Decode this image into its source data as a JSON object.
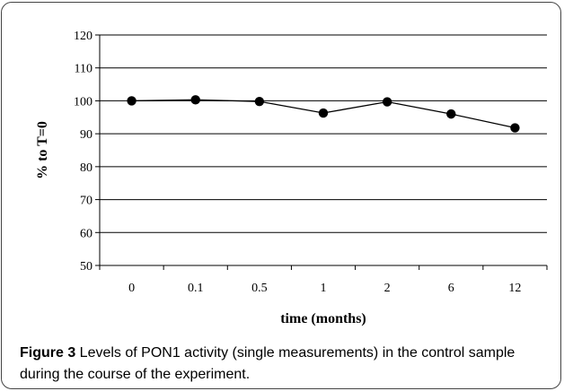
{
  "chart_data": {
    "type": "line",
    "categories": [
      "0",
      "0.1",
      "0.5",
      "1",
      "2",
      "6",
      "12"
    ],
    "series": [
      {
        "values": [
          100,
          100.3,
          99.8,
          96.3,
          99.7,
          96,
          91.8
        ]
      }
    ],
    "xlabel": "time (months)",
    "ylabel": "% to T=0",
    "ylim": [
      50,
      120
    ],
    "yticks": [
      50,
      60,
      70,
      80,
      90,
      100,
      110,
      120
    ],
    "grid": true,
    "legend": "none",
    "colors": {
      "line": "#000000",
      "marker": "#000000",
      "grid": "#000000"
    }
  },
  "caption": {
    "label": "Figure 3",
    "text": " Levels of PON1 activity (single measurements) in the control sample during the course of the experiment."
  }
}
